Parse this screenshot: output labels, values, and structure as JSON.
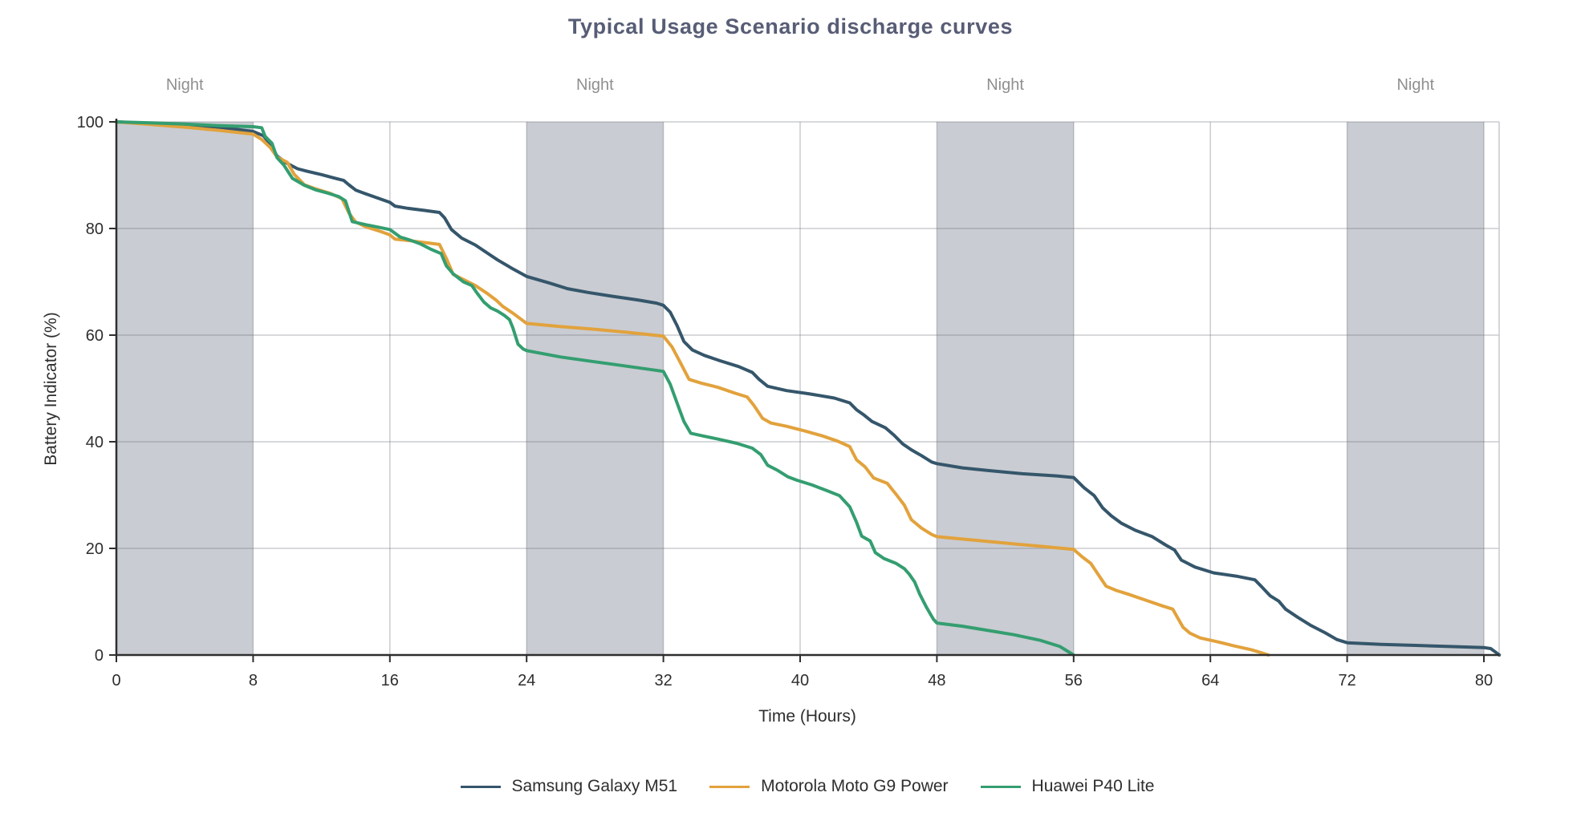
{
  "title": "Typical Usage Scenario discharge curves",
  "colors": {
    "title": "#575D75",
    "axis": "#2E2E2E",
    "tick_label": "#2E2E2E",
    "grid": "rgba(105,110,120,0.35)",
    "night_band": "#C9CCD2",
    "night_label": "#8F8F8F",
    "right_spine": "#C8C8CC"
  },
  "chart_data": {
    "type": "line",
    "title": "Typical Usage Scenario discharge curves",
    "xlabel": "Time (Hours)",
    "ylabel": "Battery Indicator (%)",
    "xlim": [
      0,
      80.9
    ],
    "ylim": [
      0,
      100
    ],
    "x_ticks": [
      0,
      8,
      16,
      24,
      32,
      40,
      48,
      56,
      64,
      72,
      80
    ],
    "y_ticks": [
      0,
      20,
      40,
      60,
      80,
      100
    ],
    "grid": true,
    "legend_position": "bottom-center",
    "night_band_label": "Night",
    "night_bands": [
      [
        0,
        8
      ],
      [
        24,
        32
      ],
      [
        48,
        56
      ],
      [
        72,
        80
      ]
    ],
    "series": [
      {
        "name": "Samsung Galaxy M51",
        "color": "#35566B",
        "points": [
          [
            0,
            100
          ],
          [
            2,
            99.7
          ],
          [
            4,
            99.4
          ],
          [
            6,
            99
          ],
          [
            8,
            98.2
          ],
          [
            8.6,
            97.4
          ],
          [
            9,
            95.8
          ],
          [
            9.4,
            93.6
          ],
          [
            10,
            92.2
          ],
          [
            10.6,
            91.2
          ],
          [
            11.2,
            90.7
          ],
          [
            12,
            90.1
          ],
          [
            12.7,
            89.5
          ],
          [
            13.3,
            89
          ],
          [
            13.6,
            88.2
          ],
          [
            14,
            87.2
          ],
          [
            14.5,
            86.6
          ],
          [
            15.2,
            85.8
          ],
          [
            16,
            84.9
          ],
          [
            16.3,
            84.2
          ],
          [
            17,
            83.8
          ],
          [
            18,
            83.4
          ],
          [
            18.9,
            83
          ],
          [
            19.2,
            82
          ],
          [
            19.6,
            79.8
          ],
          [
            20.2,
            78.2
          ],
          [
            21,
            76.9
          ],
          [
            21.7,
            75.4
          ],
          [
            22.3,
            74.1
          ],
          [
            23.1,
            72.6
          ],
          [
            24,
            71
          ],
          [
            25.3,
            69.8
          ],
          [
            26.4,
            68.7
          ],
          [
            27.6,
            68
          ],
          [
            29,
            67.3
          ],
          [
            30.5,
            66.6
          ],
          [
            31.6,
            66
          ],
          [
            32,
            65.6
          ],
          [
            32.4,
            64.3
          ],
          [
            32.8,
            61.8
          ],
          [
            33.2,
            58.8
          ],
          [
            33.7,
            57.2
          ],
          [
            34.4,
            56.2
          ],
          [
            35.3,
            55.2
          ],
          [
            36.4,
            54.1
          ],
          [
            37.2,
            53
          ],
          [
            37.6,
            51.7
          ],
          [
            38.1,
            50.4
          ],
          [
            39.2,
            49.6
          ],
          [
            40.5,
            49
          ],
          [
            42,
            48.2
          ],
          [
            42.9,
            47.3
          ],
          [
            43.3,
            46
          ],
          [
            43.7,
            45.1
          ],
          [
            44.2,
            43.8
          ],
          [
            45,
            42.6
          ],
          [
            45.5,
            41.2
          ],
          [
            46,
            39.6
          ],
          [
            46.5,
            38.5
          ],
          [
            47.1,
            37.4
          ],
          [
            47.7,
            36.2
          ],
          [
            48,
            35.9
          ],
          [
            49.5,
            35.1
          ],
          [
            51,
            34.6
          ],
          [
            53,
            34
          ],
          [
            55,
            33.6
          ],
          [
            56,
            33.3
          ],
          [
            56.6,
            31.4
          ],
          [
            57.2,
            29.9
          ],
          [
            57.7,
            27.6
          ],
          [
            58.2,
            26.1
          ],
          [
            58.8,
            24.7
          ],
          [
            59.6,
            23.4
          ],
          [
            60.6,
            22.2
          ],
          [
            61.4,
            20.6
          ],
          [
            61.9,
            19.7
          ],
          [
            62.3,
            17.8
          ],
          [
            63.1,
            16.5
          ],
          [
            64.2,
            15.4
          ],
          [
            65.5,
            14.8
          ],
          [
            66.6,
            14.1
          ],
          [
            67,
            12.8
          ],
          [
            67.5,
            11.1
          ],
          [
            68,
            10.1
          ],
          [
            68.4,
            8.6
          ],
          [
            69.1,
            7.1
          ],
          [
            69.9,
            5.5
          ],
          [
            70.7,
            4.2
          ],
          [
            71.4,
            2.9
          ],
          [
            72,
            2.3
          ],
          [
            74,
            2
          ],
          [
            76,
            1.8
          ],
          [
            78,
            1.6
          ],
          [
            80,
            1.4
          ],
          [
            80.4,
            1.2
          ],
          [
            80.7,
            0.5
          ],
          [
            80.9,
            0
          ]
        ]
      },
      {
        "name": "Motorola Moto G9 Power",
        "color": "#E2A23C",
        "points": [
          [
            0,
            100
          ],
          [
            2,
            99.5
          ],
          [
            4,
            99
          ],
          [
            6,
            98.4
          ],
          [
            8,
            97.7
          ],
          [
            8.5,
            96.7
          ],
          [
            9,
            95.2
          ],
          [
            9.4,
            93.4
          ],
          [
            10,
            92.4
          ],
          [
            10.4,
            90.2
          ],
          [
            11,
            88.2
          ],
          [
            11.6,
            87.5
          ],
          [
            12.5,
            86.6
          ],
          [
            13.2,
            85.6
          ],
          [
            13.6,
            82.9
          ],
          [
            14,
            81.2
          ],
          [
            14.6,
            80.3
          ],
          [
            15.4,
            79.5
          ],
          [
            16,
            78.8
          ],
          [
            16.3,
            78
          ],
          [
            17.2,
            77.7
          ],
          [
            18.2,
            77.3
          ],
          [
            18.9,
            77
          ],
          [
            19.3,
            74.4
          ],
          [
            19.7,
            71.4
          ],
          [
            20.2,
            70.6
          ],
          [
            21,
            69.3
          ],
          [
            21.7,
            67.8
          ],
          [
            22.2,
            66.6
          ],
          [
            22.6,
            65.4
          ],
          [
            23.2,
            64.1
          ],
          [
            24,
            62.2
          ],
          [
            26,
            61.6
          ],
          [
            28,
            61.1
          ],
          [
            30,
            60.5
          ],
          [
            32,
            59.8
          ],
          [
            32.5,
            57.8
          ],
          [
            33,
            54.8
          ],
          [
            33.5,
            51.7
          ],
          [
            34.2,
            51
          ],
          [
            35.2,
            50.2
          ],
          [
            36.2,
            49.1
          ],
          [
            36.9,
            48.4
          ],
          [
            37.3,
            46.8
          ],
          [
            37.8,
            44.4
          ],
          [
            38.3,
            43.5
          ],
          [
            39.2,
            42.9
          ],
          [
            40.3,
            42
          ],
          [
            41.3,
            41.1
          ],
          [
            42.2,
            40.1
          ],
          [
            42.9,
            39.1
          ],
          [
            43.3,
            36.6
          ],
          [
            43.8,
            35.3
          ],
          [
            44.3,
            33.2
          ],
          [
            45.1,
            32.2
          ],
          [
            45.6,
            30.2
          ],
          [
            46.1,
            28.1
          ],
          [
            46.5,
            25.4
          ],
          [
            47.1,
            23.8
          ],
          [
            47.7,
            22.6
          ],
          [
            48,
            22.2
          ],
          [
            50,
            21.6
          ],
          [
            52,
            21
          ],
          [
            54,
            20.4
          ],
          [
            56,
            19.8
          ],
          [
            56.5,
            18.4
          ],
          [
            57,
            17.2
          ],
          [
            57.5,
            14.8
          ],
          [
            57.9,
            12.9
          ],
          [
            58.5,
            12.1
          ],
          [
            59.2,
            11.4
          ],
          [
            60.2,
            10.3
          ],
          [
            61.2,
            9.2
          ],
          [
            61.8,
            8.6
          ],
          [
            62.1,
            6.9
          ],
          [
            62.4,
            5.2
          ],
          [
            62.8,
            4.1
          ],
          [
            63.4,
            3.2
          ],
          [
            64.4,
            2.5
          ],
          [
            65.4,
            1.7
          ],
          [
            66.4,
            1
          ],
          [
            67,
            0.4
          ],
          [
            67.4,
            0
          ]
        ]
      },
      {
        "name": "Huawei P40 Lite",
        "color": "#349E70",
        "points": [
          [
            0,
            100
          ],
          [
            2,
            99.8
          ],
          [
            4,
            99.6
          ],
          [
            6,
            99.3
          ],
          [
            8,
            99.1
          ],
          [
            8.5,
            98.9
          ],
          [
            8.7,
            97.3
          ],
          [
            9.1,
            96
          ],
          [
            9.4,
            93.3
          ],
          [
            9.8,
            91.9
          ],
          [
            10.3,
            89.4
          ],
          [
            11,
            88.1
          ],
          [
            11.7,
            87.2
          ],
          [
            12.4,
            86.6
          ],
          [
            13,
            86
          ],
          [
            13.4,
            85.2
          ],
          [
            13.8,
            81.3
          ],
          [
            14.6,
            80.7
          ],
          [
            15.4,
            80.2
          ],
          [
            16,
            79.8
          ],
          [
            16.6,
            78.4
          ],
          [
            17.2,
            77.8
          ],
          [
            17.8,
            77.1
          ],
          [
            18.4,
            76.1
          ],
          [
            19,
            75.3
          ],
          [
            19.3,
            73
          ],
          [
            19.7,
            71.5
          ],
          [
            20.3,
            70
          ],
          [
            20.8,
            69.3
          ],
          [
            21.1,
            67.9
          ],
          [
            21.5,
            66.2
          ],
          [
            21.9,
            65.1
          ],
          [
            22.3,
            64.5
          ],
          [
            22.7,
            63.7
          ],
          [
            23,
            62.9
          ],
          [
            23.2,
            61.3
          ],
          [
            23.5,
            58.3
          ],
          [
            23.8,
            57.4
          ],
          [
            24,
            57.1
          ],
          [
            26,
            55.9
          ],
          [
            28,
            55
          ],
          [
            30,
            54.1
          ],
          [
            32,
            53.2
          ],
          [
            32.4,
            50.8
          ],
          [
            32.8,
            47.3
          ],
          [
            33.2,
            43.8
          ],
          [
            33.6,
            41.6
          ],
          [
            34.3,
            41.1
          ],
          [
            35.2,
            40.5
          ],
          [
            36.3,
            39.7
          ],
          [
            37.2,
            38.8
          ],
          [
            37.7,
            37.6
          ],
          [
            38.1,
            35.6
          ],
          [
            38.7,
            34.6
          ],
          [
            39.3,
            33.4
          ],
          [
            39.8,
            32.8
          ],
          [
            40.7,
            31.9
          ],
          [
            41.6,
            30.8
          ],
          [
            42.3,
            29.9
          ],
          [
            42.9,
            27.8
          ],
          [
            43.3,
            24.9
          ],
          [
            43.6,
            22.3
          ],
          [
            44.1,
            21.4
          ],
          [
            44.4,
            19.2
          ],
          [
            44.9,
            18.1
          ],
          [
            45.6,
            17.2
          ],
          [
            46.1,
            16.2
          ],
          [
            46.4,
            15.1
          ],
          [
            46.7,
            13.7
          ],
          [
            47,
            11.4
          ],
          [
            47.4,
            8.9
          ],
          [
            47.8,
            6.7
          ],
          [
            48,
            6
          ],
          [
            49.5,
            5.4
          ],
          [
            51,
            4.6
          ],
          [
            52.5,
            3.8
          ],
          [
            54,
            2.8
          ],
          [
            55.2,
            1.6
          ],
          [
            55.7,
            0.6
          ],
          [
            56,
            0
          ]
        ]
      }
    ]
  }
}
